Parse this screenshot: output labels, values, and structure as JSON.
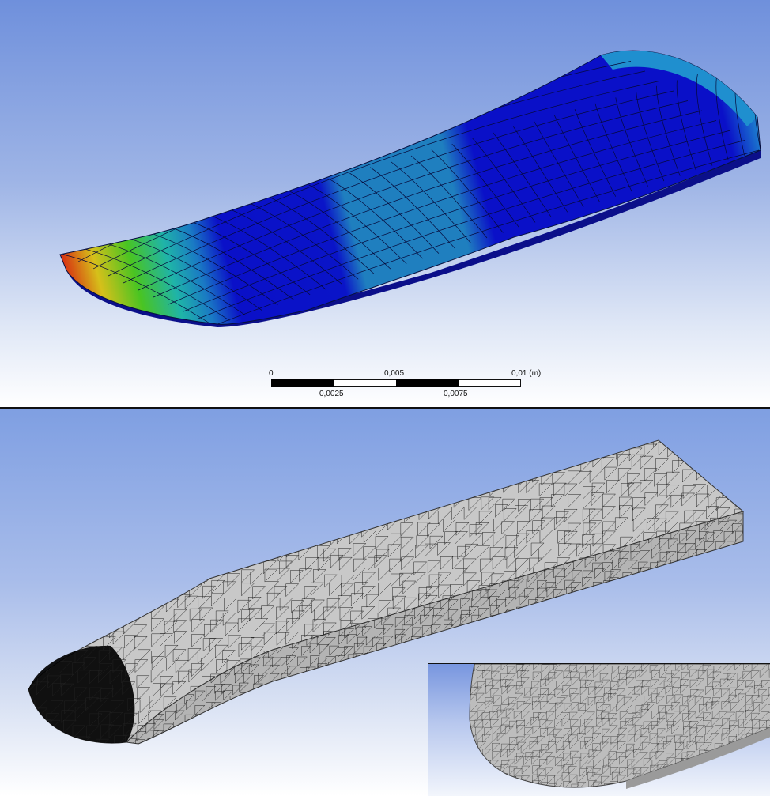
{
  "scale_bar": {
    "label_0": "0",
    "label_0_005": "0,005",
    "label_0_01": "0,01 (m)",
    "label_0_0025": "0,0025",
    "label_0_0075": "0,0075"
  },
  "colors": {
    "contour_blue": "#0a10c8",
    "contour_cyan": "#1f7fbf",
    "contour_green": "#22c022",
    "contour_yellow": "#d6d61a",
    "contour_red": "#d81a10",
    "mesh_fill": "#c6c6c6"
  }
}
